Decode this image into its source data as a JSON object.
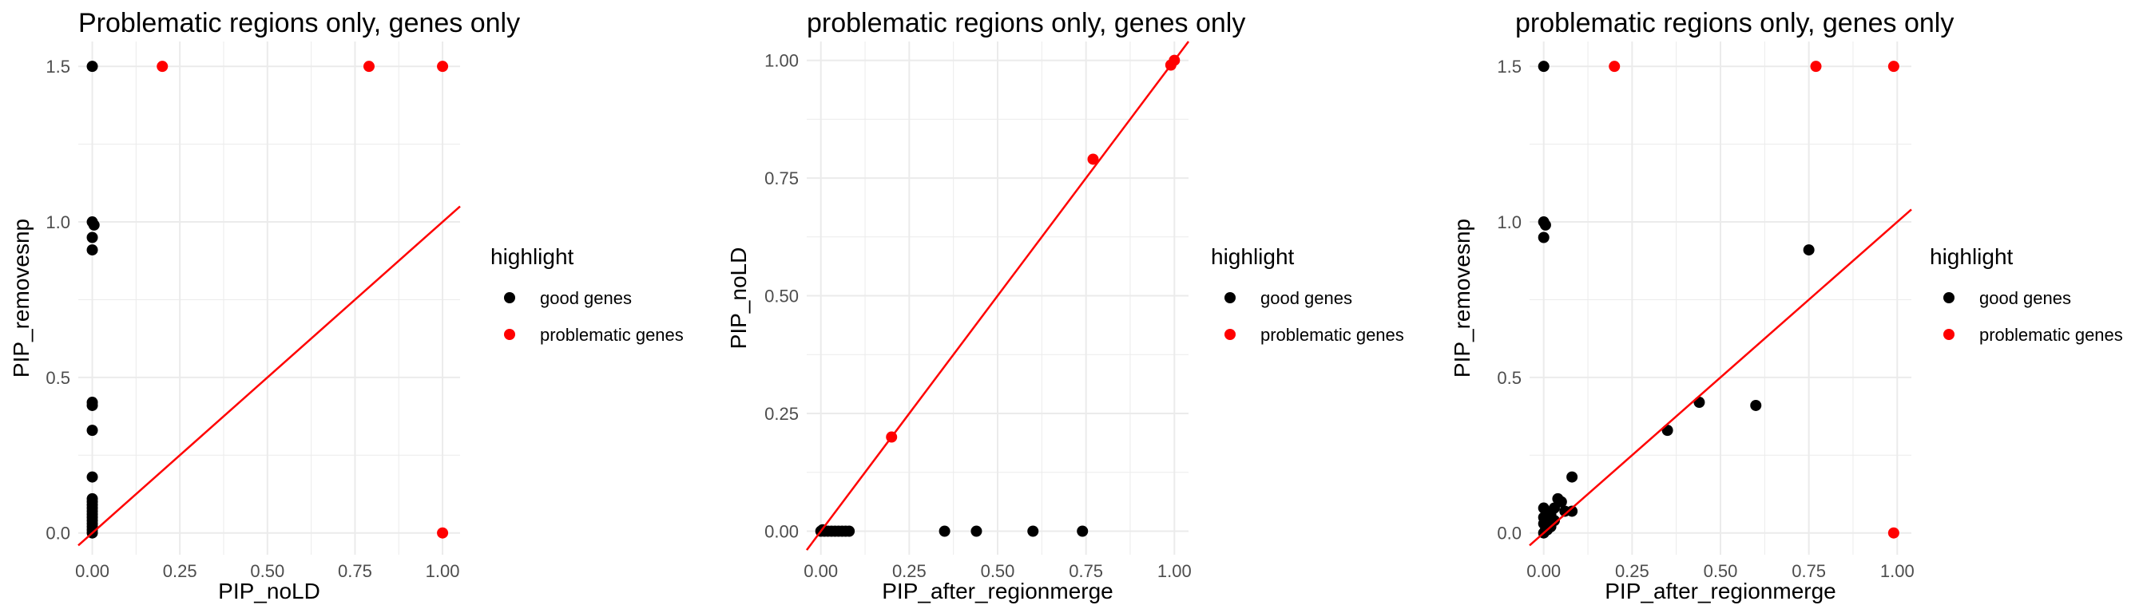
{
  "colors": {
    "good": "#000000",
    "problematic": "#ff0000",
    "line": "#ff0000",
    "grid": "#ebebeb"
  },
  "chart_data": [
    {
      "type": "scatter",
      "title": "Problematic regions only, genes only",
      "xlabel": "PIP_noLD",
      "ylabel": "PIP_removesnp",
      "xlim": [
        -0.04,
        1.05
      ],
      "ylim": [
        -0.07,
        1.58
      ],
      "x_ticks": [
        "0.00",
        "0.25",
        "0.50",
        "0.75",
        "1.00"
      ],
      "x_tick_values": [
        0,
        0.25,
        0.5,
        0.75,
        1.0
      ],
      "y_ticks": [
        "0.0",
        "0.5",
        "1.0",
        "1.5"
      ],
      "y_tick_values": [
        0,
        0.5,
        1.0,
        1.5
      ],
      "grid": true,
      "reference_line": "y = x",
      "legend": {
        "title": "highlight",
        "entries": [
          "good genes",
          "problematic genes"
        ],
        "placement": "right"
      },
      "series": [
        {
          "name": "good genes",
          "color": "#000000",
          "points": [
            [
              0,
              1.5
            ],
            [
              0,
              1.0
            ],
            [
              0.005,
              0.99
            ],
            [
              0,
              0.95
            ],
            [
              0,
              0.91
            ],
            [
              0,
              0.42
            ],
            [
              0,
              0.41
            ],
            [
              0,
              0.33
            ],
            [
              0,
              0.18
            ],
            [
              0,
              0.11
            ],
            [
              0,
              0.1
            ],
            [
              0,
              0.09
            ],
            [
              0,
              0.08
            ],
            [
              0,
              0.07
            ],
            [
              0,
              0.06
            ],
            [
              0,
              0.05
            ],
            [
              0,
              0.04
            ],
            [
              0,
              0.03
            ],
            [
              0,
              0.02
            ],
            [
              0,
              0.01
            ],
            [
              0,
              0
            ]
          ]
        },
        {
          "name": "problematic genes",
          "color": "#ff0000",
          "points": [
            [
              0.2,
              1.5
            ],
            [
              0.79,
              1.5
            ],
            [
              1.0,
              1.5
            ],
            [
              1.0,
              0
            ]
          ]
        }
      ]
    },
    {
      "type": "scatter",
      "title": "problematic regions only, genes only",
      "xlabel": "PIP_after_regionmerge",
      "ylabel": "PIP_noLD",
      "xlim": [
        -0.04,
        1.04
      ],
      "ylim": [
        -0.05,
        1.04
      ],
      "x_ticks": [
        "0.00",
        "0.25",
        "0.50",
        "0.75",
        "1.00"
      ],
      "x_tick_values": [
        0,
        0.25,
        0.5,
        0.75,
        1.0
      ],
      "y_ticks": [
        "0.00",
        "0.25",
        "0.50",
        "0.75",
        "1.00"
      ],
      "y_tick_values": [
        0,
        0.25,
        0.5,
        0.75,
        1.0
      ],
      "grid": true,
      "reference_line": "y = x",
      "legend": {
        "title": "highlight",
        "entries": [
          "good genes",
          "problematic genes"
        ],
        "placement": "right"
      },
      "series": [
        {
          "name": "good genes",
          "color": "#000000",
          "points": [
            [
              0,
              0
            ],
            [
              0.005,
              0.003
            ],
            [
              0.01,
              0
            ],
            [
              0.02,
              0
            ],
            [
              0.03,
              0
            ],
            [
              0.04,
              0
            ],
            [
              0.05,
              0
            ],
            [
              0.06,
              0
            ],
            [
              0.07,
              0
            ],
            [
              0.08,
              0
            ],
            [
              0.35,
              0
            ],
            [
              0.44,
              0
            ],
            [
              0.6,
              0
            ],
            [
              0.74,
              0
            ]
          ]
        },
        {
          "name": "problematic genes",
          "color": "#ff0000",
          "points": [
            [
              0.2,
              0.2
            ],
            [
              0.77,
              0.79
            ],
            [
              0.99,
              0.99
            ],
            [
              1.0,
              1.0
            ]
          ]
        }
      ]
    },
    {
      "type": "scatter",
      "title": "problematic regions only, genes only",
      "xlabel": "PIP_after_regionmerge",
      "ylabel": "PIP_removesnp",
      "xlim": [
        -0.04,
        1.04
      ],
      "ylim": [
        -0.07,
        1.58
      ],
      "x_ticks": [
        "0.00",
        "0.25",
        "0.50",
        "0.75",
        "1.00"
      ],
      "x_tick_values": [
        0,
        0.25,
        0.5,
        0.75,
        1.0
      ],
      "y_ticks": [
        "0.0",
        "0.5",
        "1.0",
        "1.5"
      ],
      "y_tick_values": [
        0,
        0.5,
        1.0,
        1.5
      ],
      "grid": true,
      "reference_line": "y = x",
      "legend": {
        "title": "highlight",
        "entries": [
          "good genes",
          "problematic genes"
        ],
        "placement": "right"
      },
      "series": [
        {
          "name": "good genes",
          "color": "#000000",
          "points": [
            [
              0,
              1.5
            ],
            [
              0,
              1.0
            ],
            [
              0.005,
              0.99
            ],
            [
              0,
              0.95
            ],
            [
              0.75,
              0.91
            ],
            [
              0.44,
              0.42
            ],
            [
              0.6,
              0.41
            ],
            [
              0.35,
              0.33
            ],
            [
              0.08,
              0.18
            ],
            [
              0.04,
              0.11
            ],
            [
              0.05,
              0.1
            ],
            [
              0,
              0.08
            ],
            [
              0.03,
              0.08
            ],
            [
              0.06,
              0.07
            ],
            [
              0.08,
              0.07
            ],
            [
              0.02,
              0.06
            ],
            [
              0,
              0.05
            ],
            [
              0.01,
              0.04
            ],
            [
              0.03,
              0.04
            ],
            [
              0,
              0.03
            ],
            [
              0.02,
              0.02
            ],
            [
              0.005,
              0.01
            ],
            [
              0.01,
              0.01
            ],
            [
              0,
              0
            ]
          ]
        },
        {
          "name": "problematic genes",
          "color": "#ff0000",
          "points": [
            [
              0.2,
              1.5
            ],
            [
              0.77,
              1.5
            ],
            [
              0.99,
              1.5
            ],
            [
              0.99,
              0
            ]
          ]
        }
      ]
    }
  ]
}
